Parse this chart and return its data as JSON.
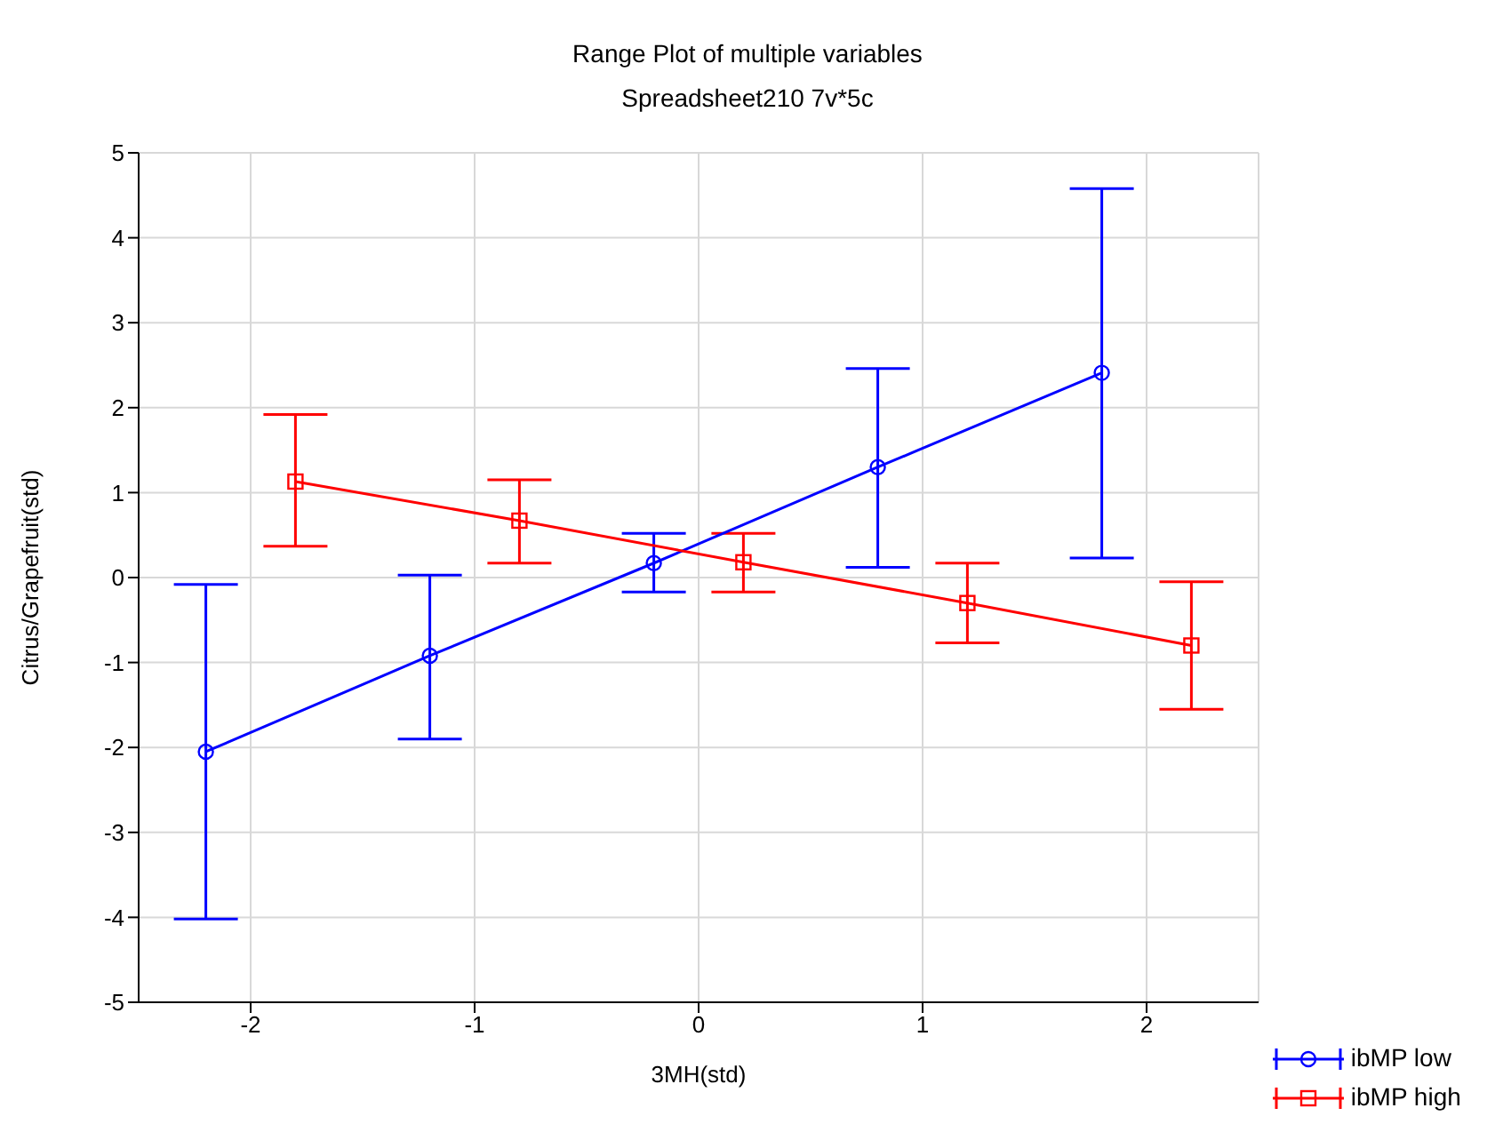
{
  "chart_data": {
    "type": "line",
    "title": "Range Plot of multiple variables",
    "subtitle": "Spreadsheet210 7v*5c",
    "xlabel": "3MH(std)",
    "ylabel": "Citrus/Grapefruit(std)",
    "xlim": [
      -2.5,
      2.5
    ],
    "xticks": [
      -2,
      -1,
      0,
      1,
      2
    ],
    "ylim": [
      -5,
      5
    ],
    "yticks": [
      -5,
      -4,
      -3,
      -2,
      -1,
      0,
      1,
      2,
      3,
      4,
      5
    ],
    "grid": true,
    "legend": "bottom right",
    "series": [
      {
        "name": "ibMP low",
        "color": "#0000ff",
        "marker": "circle",
        "x": [
          -2.2,
          -1.2,
          -0.2,
          0.8,
          1.8
        ],
        "values": [
          -2.05,
          -0.92,
          0.17,
          1.3,
          2.41
        ],
        "errors": [
          [
            -4.02,
            -0.08
          ],
          [
            -1.9,
            0.03
          ],
          [
            -0.17,
            0.52
          ],
          [
            0.12,
            2.46
          ],
          [
            0.23,
            4.58
          ]
        ]
      },
      {
        "name": "ibMP high",
        "color": "#ff0000",
        "marker": "square",
        "x": [
          -1.8,
          -0.8,
          0.2,
          1.2,
          2.2
        ],
        "values": [
          1.13,
          0.67,
          0.18,
          -0.3,
          -0.8
        ],
        "errors": [
          [
            0.37,
            1.92
          ],
          [
            0.17,
            1.15
          ],
          [
            -0.17,
            0.52
          ],
          [
            -0.77,
            0.17
          ],
          [
            -1.55,
            -0.05
          ]
        ]
      }
    ]
  }
}
